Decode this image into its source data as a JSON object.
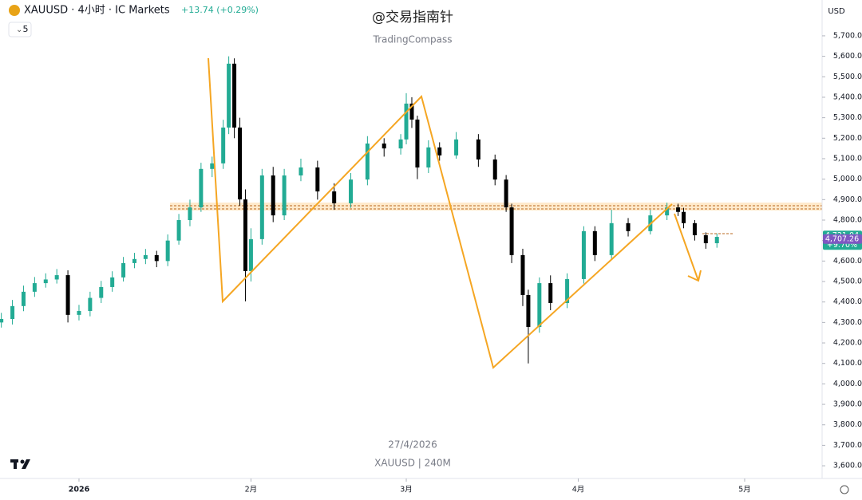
{
  "chart_data": {
    "type": "candlestick",
    "symbol": "XAUUSD · 4小时 · IC Markets",
    "change": "+13.74 (+0.29%)",
    "interval_box": "5",
    "currency": "USD",
    "watermark": "@交易指南针",
    "watermark_sub": "TradingCompass",
    "date_caption": "27/4/2026",
    "symbol_caption": "XAUUSD | 240M",
    "up_color": "#22ab94",
    "down_color": "#000000",
    "x": [
      -14,
      -12,
      -10,
      -8,
      -6,
      -4,
      -2,
      0,
      2,
      4,
      6,
      8,
      10,
      12,
      14,
      16,
      18,
      20,
      22,
      24,
      26,
      27,
      28,
      29,
      30,
      31,
      33,
      35,
      37,
      40,
      43,
      46,
      49,
      52,
      55,
      58,
      59,
      60,
      61,
      63,
      65,
      68,
      72,
      75,
      77,
      78,
      80,
      81,
      83,
      85,
      88,
      91,
      93,
      96,
      99,
      103,
      106,
      108,
      109,
      111,
      113,
      115
    ],
    "open": [
      4300,
      4317,
      4380,
      4450,
      4492,
      4510,
      4531,
      4337,
      4356,
      4420,
      4473,
      4520,
      4590,
      4610,
      4629,
      4600,
      4700,
      4800,
      4862,
      5050,
      5077,
      5252,
      5564,
      5252,
      4901,
      4551,
      4707,
      5018,
      4823,
      5018,
      5057,
      4940,
      4882,
      4998,
      5174,
      5150,
      5194,
      5369,
      5291,
      5057,
      5155,
      5116,
      5194,
      5096,
      4998,
      4862,
      4629,
      4434,
      4278,
      4492,
      4395,
      4512,
      4746,
      4629,
      4785,
      4746,
      4823,
      4862,
      4840,
      4785,
      4726,
      4687
    ],
    "high": [
      4347,
      4410,
      4480,
      4522,
      4540,
      4561,
      4555,
      4386,
      4450,
      4503,
      4550,
      4620,
      4640,
      4659,
      4650,
      4730,
      4830,
      4900,
      5080,
      5110,
      5290,
      5600,
      5590,
      5300,
      4950,
      4760,
      5050,
      5060,
      5050,
      5100,
      5090,
      4980,
      5030,
      5210,
      5200,
      5220,
      5420,
      5400,
      5310,
      5190,
      5180,
      5230,
      5220,
      5120,
      5020,
      4880,
      4660,
      4460,
      4520,
      4530,
      4540,
      4770,
      4770,
      4850,
      4810,
      4850,
      4885,
      4880,
      4860,
      4800,
      4740,
      4735
    ],
    "low": [
      4275,
      4290,
      4355,
      4425,
      4470,
      4490,
      4300,
      4310,
      4330,
      4395,
      4450,
      4500,
      4565,
      4585,
      4570,
      4575,
      4680,
      4770,
      4840,
      5010,
      5050,
      5220,
      5200,
      4870,
      4403,
      4500,
      4680,
      4790,
      4800,
      4990,
      4900,
      4850,
      4860,
      4970,
      5110,
      5120,
      5170,
      5250,
      5000,
      5030,
      5090,
      5100,
      5060,
      4970,
      4840,
      4590,
      4380,
      4100,
      4250,
      4360,
      4370,
      4490,
      4600,
      4610,
      4720,
      4730,
      4800,
      4820,
      4760,
      4700,
      4660,
      4665
    ],
    "close": [
      4317,
      4380,
      4450,
      4492,
      4510,
      4531,
      4337,
      4356,
      4420,
      4473,
      4520,
      4590,
      4610,
      4629,
      4600,
      4700,
      4800,
      4862,
      5050,
      5077,
      5252,
      5564,
      5252,
      4901,
      4551,
      4707,
      5018,
      4823,
      5018,
      5057,
      4940,
      4882,
      4998,
      5174,
      5150,
      5194,
      5369,
      5291,
      5057,
      5155,
      5116,
      5194,
      5096,
      4998,
      4862,
      4629,
      4434,
      4278,
      4492,
      4395,
      4512,
      4746,
      4629,
      4785,
      4746,
      4823,
      4862,
      4840,
      4785,
      4726,
      4687,
      4718
    ],
    "xlim": [
      -14.24,
      133.96
    ],
    "xticks": [
      {
        "value": 0,
        "label": "2026"
      },
      {
        "value": 31,
        "label": "2月"
      },
      {
        "value": 59,
        "label": "3月"
      },
      {
        "value": 90,
        "label": "4月"
      },
      {
        "value": 120,
        "label": "5月"
      }
    ],
    "ylim": [
      3538,
      5875
    ],
    "yticks": [
      {
        "value": 3600,
        "label": "3,600.00"
      },
      {
        "value": 3700,
        "label": "3,700.00"
      },
      {
        "value": 3800,
        "label": "3,800.00"
      },
      {
        "value": 3900,
        "label": "3,900.00"
      },
      {
        "value": 4000,
        "label": "4,000.00"
      },
      {
        "value": 4100,
        "label": "4,100.00"
      },
      {
        "value": 4200,
        "label": "4,200.00"
      },
      {
        "value": 4300,
        "label": "4,300.00"
      },
      {
        "value": 4400,
        "label": "4,400.00"
      },
      {
        "value": 4500,
        "label": "4,500.00"
      },
      {
        "value": 4600,
        "label": "4,600.00"
      },
      {
        "value": 4700,
        "label": "4,700.00"
      },
      {
        "value": 4800,
        "label": "4,800.00"
      },
      {
        "value": 4900,
        "label": "4,900.00"
      },
      {
        "value": 5000,
        "label": "5,000.00"
      },
      {
        "value": 5100,
        "label": "5,100.00"
      },
      {
        "value": 5200,
        "label": "5,200.00"
      },
      {
        "value": 5300,
        "label": "5,300.00"
      },
      {
        "value": 5400,
        "label": "5,400.00"
      },
      {
        "value": 5500,
        "label": "5,500.00"
      },
      {
        "value": 5600,
        "label": "5,600.00"
      },
      {
        "value": 5700,
        "label": "5,700.00"
      }
    ],
    "price_labels": [
      {
        "value": 4721.04,
        "label": "4,721.04",
        "sub": "+9.70%",
        "color": "#22ab94"
      },
      {
        "value": 4707.26,
        "label": "4,707.26",
        "color": "#7e57c2"
      }
    ]
  }
}
